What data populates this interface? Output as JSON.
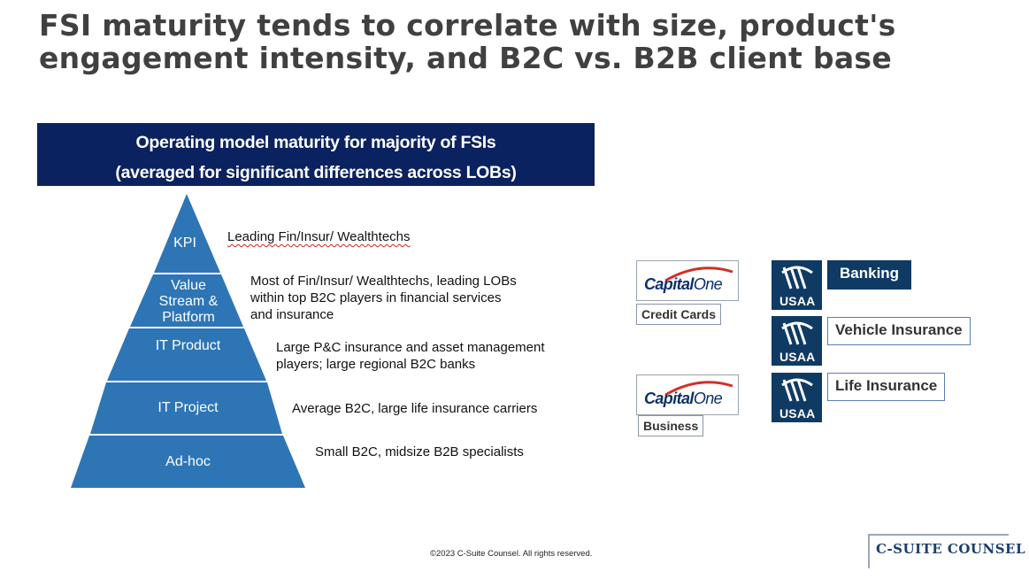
{
  "title": {
    "line1": "FSI maturity tends to correlate with size, product's",
    "line2": "engagement intensity, and B2C vs. B2B client base"
  },
  "banner": {
    "line1": "Operating model maturity for majority of FSIs",
    "line2": "(averaged for significant differences across LOBs)"
  },
  "pyramid": {
    "color": "#2e75b6",
    "levels": [
      {
        "label": "KPI",
        "desc_lines": [
          "Leading Fin/Insur/ Wealthtechs"
        ]
      },
      {
        "label_lines": [
          "Value",
          "Stream &",
          "Platform"
        ],
        "desc_lines": [
          "Most of Fin/Insur/ Wealthtechs, leading LOBs",
          "within top B2C players in financial services",
          "and insurance"
        ]
      },
      {
        "label": "IT Product",
        "desc_lines": [
          "Large P&C insurance and asset management",
          "players; large regional B2C banks"
        ]
      },
      {
        "label": "IT Project",
        "desc_lines": [
          "Average B2C, large life insurance carriers"
        ]
      },
      {
        "label": "Ad-hoc",
        "desc_lines": [
          "Small B2C, midsize B2B specialists"
        ]
      }
    ]
  },
  "capital_one": {
    "logo_bold": "Capital",
    "logo_light": "One",
    "tags": [
      "Credit Cards",
      "Business"
    ]
  },
  "usaa": {
    "logo_text": "USAA",
    "tags": [
      "Banking",
      "Vehicle Insurance",
      "Life Insurance"
    ]
  },
  "footer": "©2023 C-Suite Counsel.  All rights reserved.",
  "brand": "C-SUITE COUNSEL",
  "colors": {
    "navy": "#0b2260",
    "pyramid_blue": "#2e75b6",
    "usaa_navy": "#0f3a63",
    "capital_red": "#d03027"
  }
}
